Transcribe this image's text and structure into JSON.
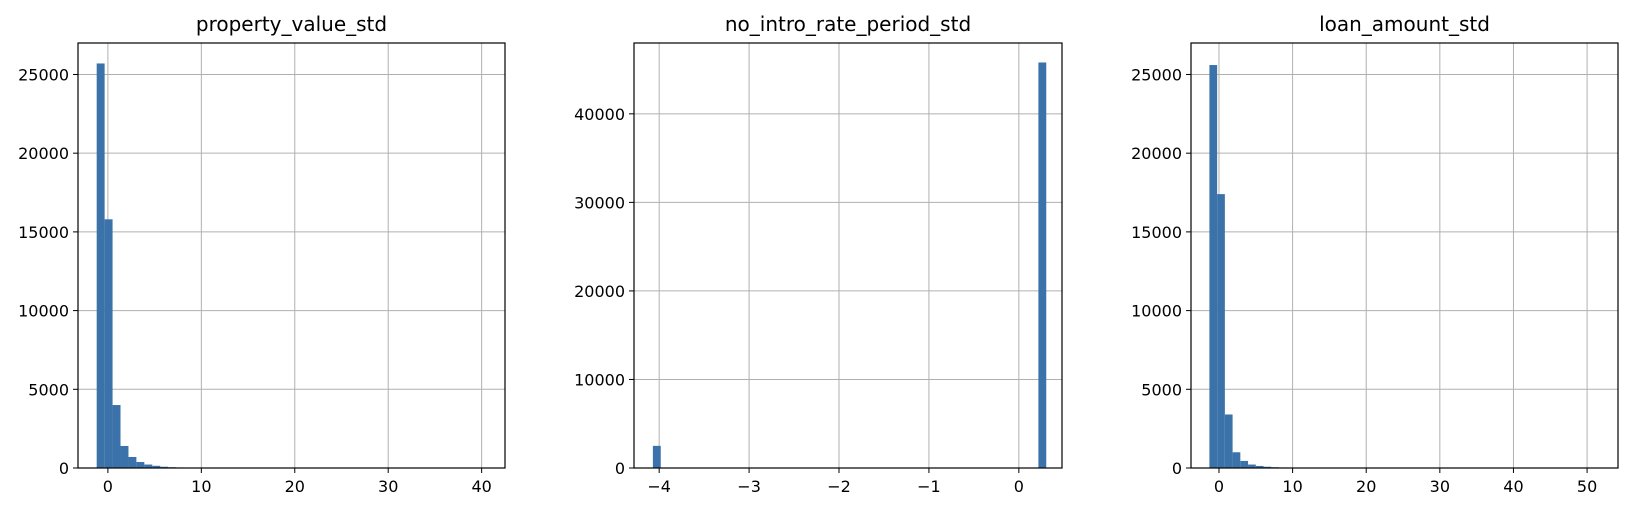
{
  "colors": {
    "bar": "#3b72aa",
    "grid": "#b0b0b0",
    "axis": "#000000"
  },
  "chart_data": [
    {
      "type": "bar",
      "title": "property_value_std",
      "grid": true,
      "xlim": [
        -3.2,
        42.5
      ],
      "ylim": [
        0,
        27000
      ],
      "xticks": [
        0,
        10,
        20,
        30,
        40
      ],
      "yticks": [
        0,
        5000,
        10000,
        15000,
        20000,
        25000
      ],
      "xtick_labels": [
        "0",
        "10",
        "20",
        "30",
        "40"
      ],
      "ytick_labels": [
        "0",
        "5000",
        "10000",
        "15000",
        "20000",
        "25000"
      ],
      "bin_start": -1.2,
      "bin_width": 0.85,
      "values": [
        25700,
        15800,
        4000,
        1400,
        700,
        380,
        220,
        140,
        80,
        50,
        35,
        25,
        18,
        14,
        10,
        8,
        6,
        5,
        4,
        3,
        3,
        2,
        2,
        2,
        1,
        1,
        1,
        1,
        1,
        1,
        1,
        1,
        1,
        1,
        1,
        1,
        1,
        1,
        1,
        1,
        1,
        1,
        1,
        1,
        1,
        1,
        1,
        1,
        1,
        1
      ]
    },
    {
      "type": "bar",
      "title": "no_intro_rate_period_std",
      "grid": true,
      "xlim": [
        -4.28,
        0.48
      ],
      "ylim": [
        0,
        48000
      ],
      "xticks": [
        -4,
        -3,
        -2,
        -1,
        0
      ],
      "yticks": [
        0,
        10000,
        20000,
        30000,
        40000
      ],
      "xtick_labels": [
        "−4",
        "−3",
        "−2",
        "−1",
        "0"
      ],
      "ytick_labels": [
        "0",
        "10000",
        "20000",
        "30000",
        "40000"
      ],
      "bin_start": -4.07,
      "bin_width": 0.0875,
      "values": [
        2500,
        0,
        0,
        0,
        0,
        0,
        0,
        0,
        0,
        0,
        0,
        0,
        0,
        0,
        0,
        0,
        0,
        0,
        0,
        0,
        0,
        0,
        0,
        0,
        0,
        0,
        0,
        0,
        0,
        0,
        0,
        0,
        0,
        0,
        0,
        0,
        0,
        0,
        0,
        0,
        0,
        0,
        0,
        0,
        0,
        0,
        0,
        0,
        0,
        45800
      ]
    },
    {
      "type": "bar",
      "title": "loan_amount_std",
      "grid": true,
      "xlim": [
        -3.8,
        54.2
      ],
      "ylim": [
        0,
        27000
      ],
      "xticks": [
        0,
        10,
        20,
        30,
        40,
        50
      ],
      "yticks": [
        0,
        5000,
        10000,
        15000,
        20000,
        25000
      ],
      "xtick_labels": [
        "0",
        "10",
        "20",
        "30",
        "40",
        "50"
      ],
      "ytick_labels": [
        "0",
        "5000",
        "10000",
        "15000",
        "20000",
        "25000"
      ],
      "bin_start": -1.3,
      "bin_width": 1.05,
      "values": [
        25600,
        17400,
        3400,
        1000,
        450,
        220,
        130,
        80,
        50,
        35,
        25,
        18,
        14,
        10,
        8,
        6,
        5,
        4,
        3,
        3,
        2,
        2,
        2,
        1,
        1,
        1,
        1,
        1,
        1,
        1,
        1,
        1,
        1,
        1,
        1,
        1,
        1,
        1,
        1,
        1,
        1,
        1,
        1,
        1,
        1,
        1,
        1,
        1,
        1,
        1
      ]
    }
  ]
}
